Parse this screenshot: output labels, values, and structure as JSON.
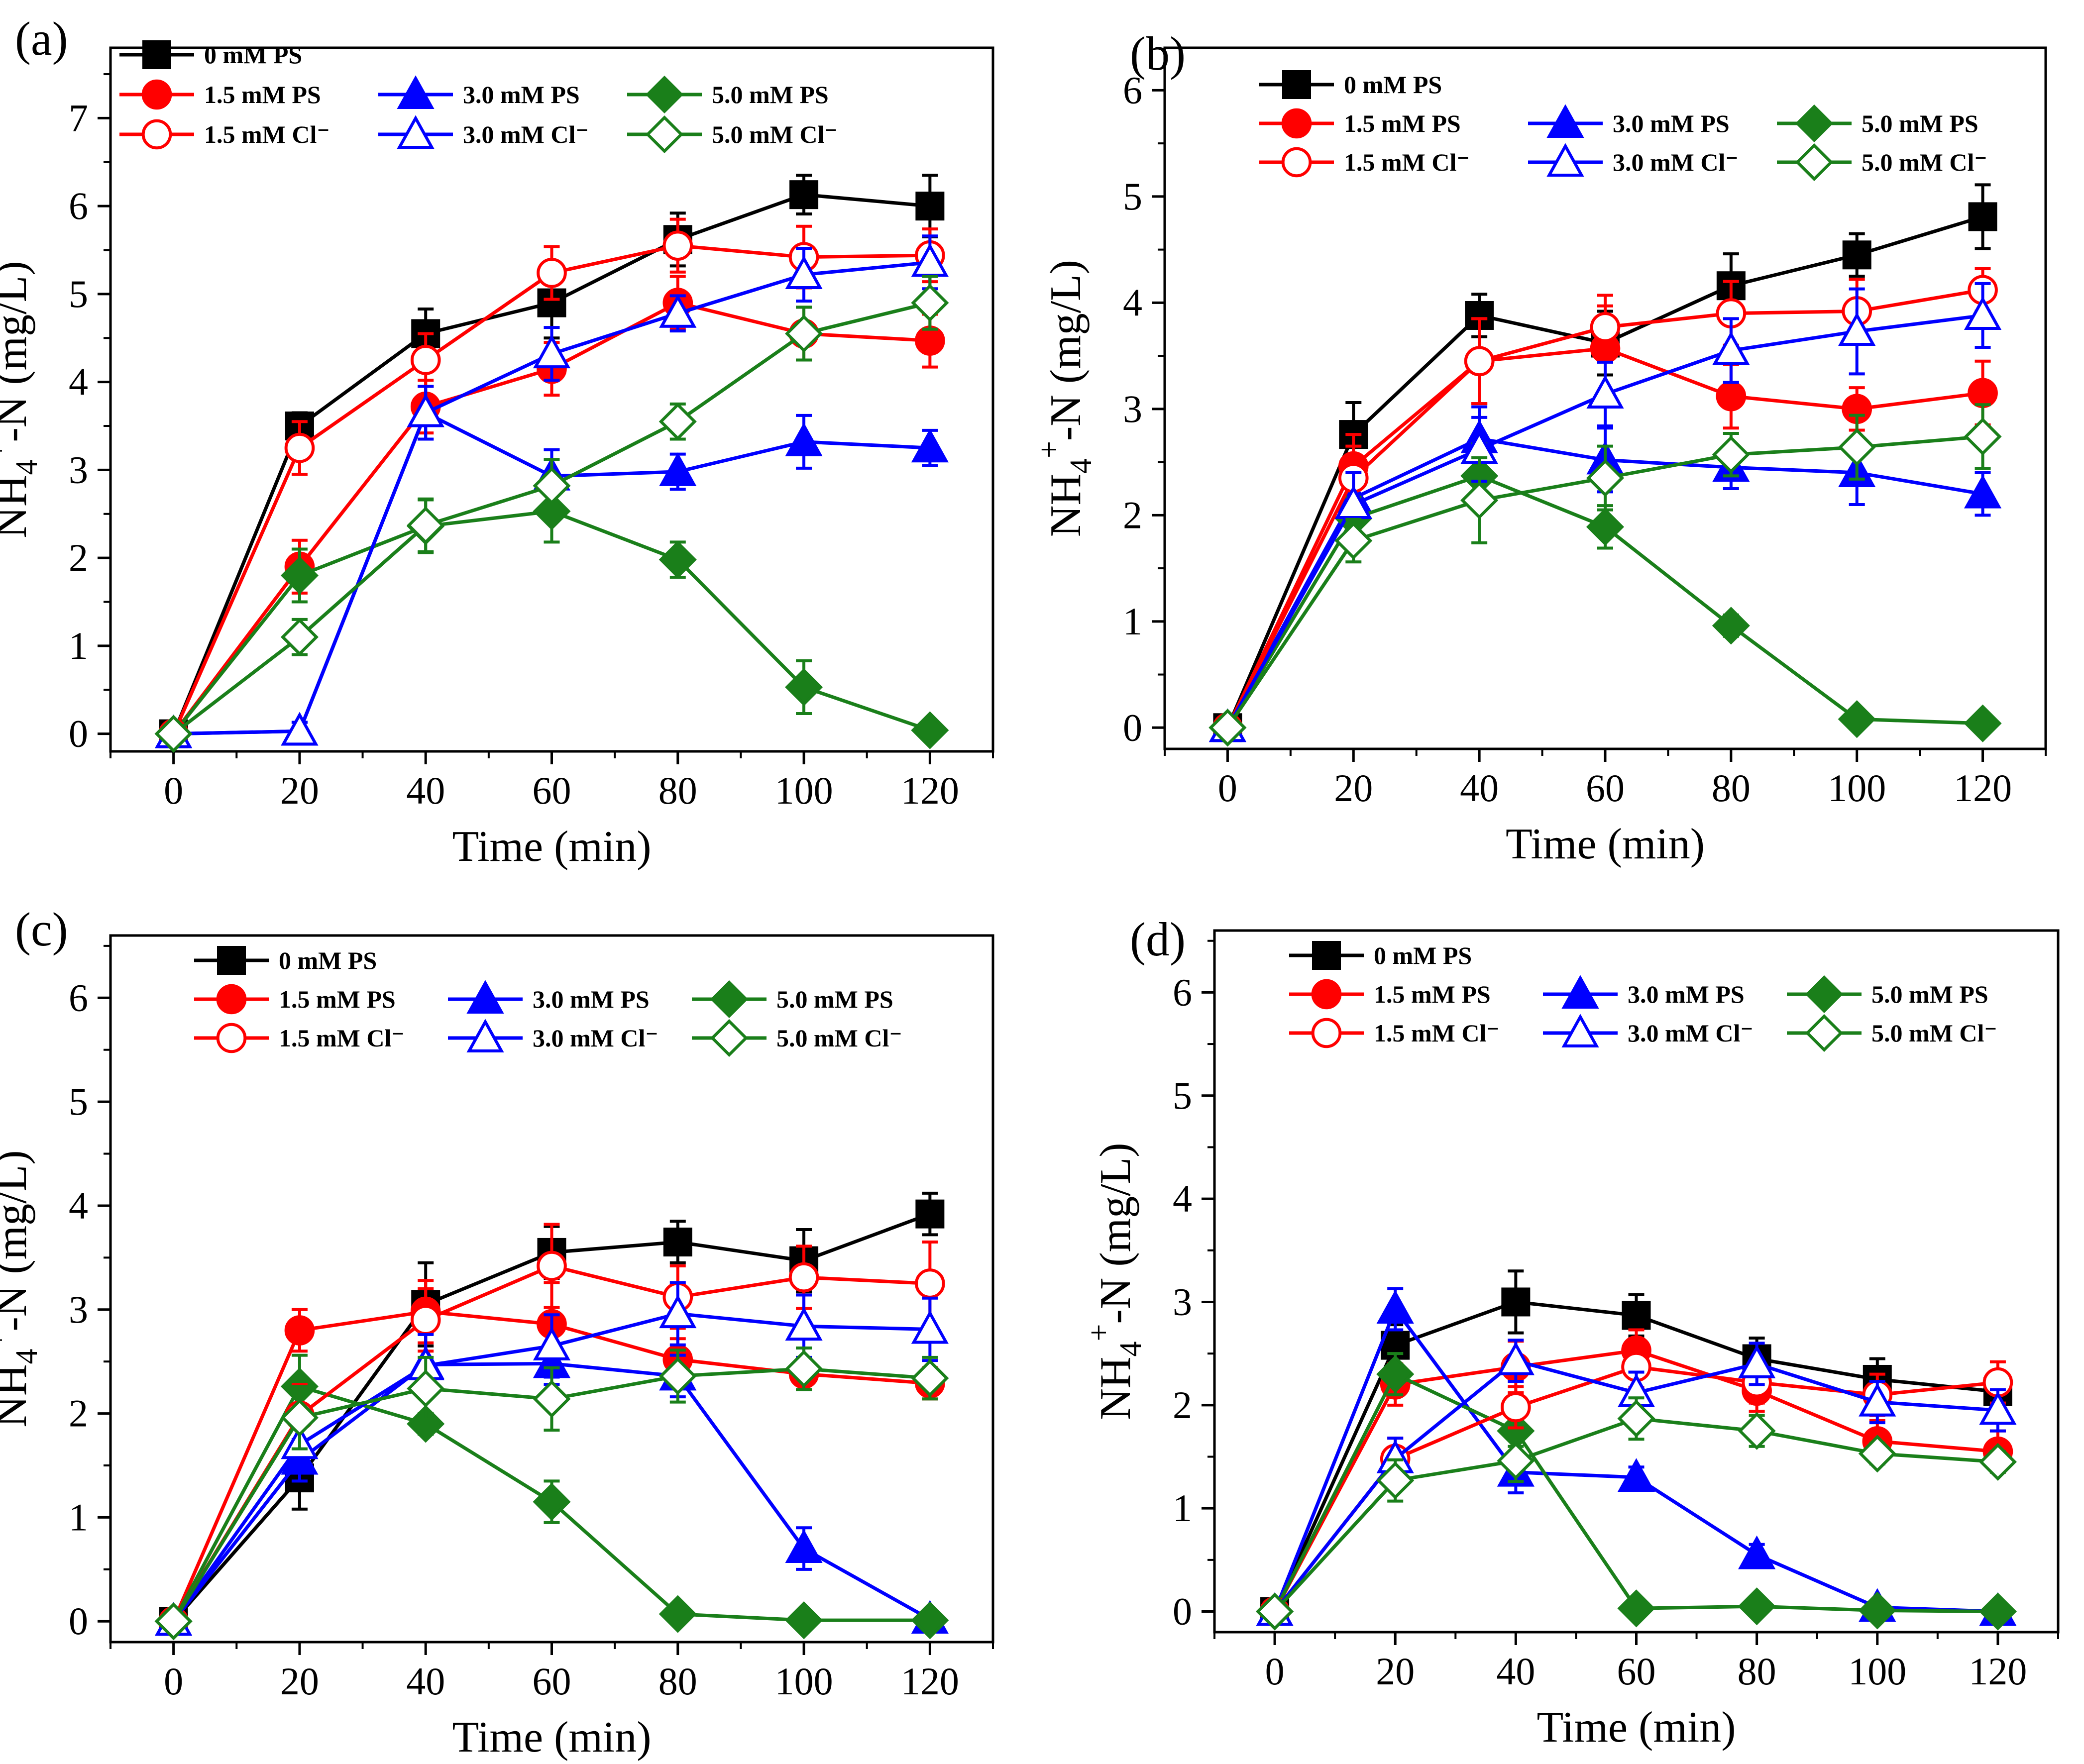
{
  "colors": {
    "black": "#000000",
    "red": "#ff0000",
    "blue": "#0000ff",
    "green": "#1a7f1a"
  },
  "chart_data": [
    {
      "type": "line",
      "label": "(a)",
      "xlabel": "Time (min)",
      "ylabel_base": "NH",
      "ylabel_sub": "4",
      "ylabel_sup": "+",
      "ylabel_rest": "-N (mg/L)",
      "xlim": [
        -10,
        130
      ],
      "ylim": [
        -0.2,
        7.8
      ],
      "xticks": [
        0,
        20,
        40,
        60,
        80,
        100,
        120
      ],
      "yticks": [
        0,
        1,
        2,
        3,
        4,
        5,
        6,
        7
      ],
      "x": [
        0,
        20,
        40,
        60,
        80,
        100,
        120
      ],
      "series": [
        {
          "name": "0 mM PS",
          "color": "black",
          "marker": "square",
          "filled": true,
          "values": [
            0,
            3.5,
            4.55,
            4.9,
            5.62,
            6.13,
            6.0
          ],
          "errors": [
            0,
            0.15,
            0.28,
            0.4,
            0.3,
            0.22,
            0.35
          ]
        },
        {
          "name": "1.5 mM PS",
          "color": "red",
          "marker": "circle",
          "filled": true,
          "values": [
            0,
            1.9,
            3.72,
            4.15,
            4.9,
            4.55,
            4.47
          ],
          "errors": [
            0,
            0.3,
            0.3,
            0.3,
            0.3,
            0.3,
            0.3
          ]
        },
        {
          "name": "3.0 mM PS",
          "color": "blue",
          "marker": "triangle",
          "filled": true,
          "values": [
            0,
            0.03,
            3.65,
            2.93,
            2.98,
            3.32,
            3.25
          ],
          "errors": [
            0,
            0.1,
            0.3,
            0.3,
            0.2,
            0.3,
            0.2
          ]
        },
        {
          "name": "5.0 mM PS",
          "color": "green",
          "marker": "diamond",
          "filled": true,
          "values": [
            0,
            1.8,
            2.36,
            2.53,
            1.98,
            0.53,
            0.04
          ],
          "errors": [
            0,
            0.3,
            0.3,
            0.35,
            0.2,
            0.3,
            0.05
          ]
        },
        {
          "name": "1.5 mM Cl⁻",
          "color": "red",
          "marker": "circle",
          "filled": false,
          "values": [
            0,
            3.25,
            4.25,
            5.24,
            5.55,
            5.42,
            5.44
          ],
          "errors": [
            0,
            0.3,
            0.3,
            0.3,
            0.3,
            0.35,
            0.3
          ]
        },
        {
          "name": "3.0 mM Cl⁻",
          "color": "blue",
          "marker": "triangle",
          "filled": false,
          "values": [
            0,
            0.03,
            3.65,
            4.32,
            4.78,
            5.22,
            5.36
          ],
          "errors": [
            0,
            0.1,
            0.3,
            0.3,
            0.2,
            0.3,
            0.3
          ]
        },
        {
          "name": "5.0 mM Cl⁻",
          "color": "green",
          "marker": "diamond",
          "filled": false,
          "values": [
            0,
            1.1,
            2.37,
            2.82,
            3.55,
            4.55,
            4.9
          ],
          "errors": [
            0,
            0.2,
            0.3,
            0.3,
            0.2,
            0.3,
            0.3
          ]
        }
      ]
    },
    {
      "type": "line",
      "label": "(b)",
      "xlabel": "Time (min)",
      "ylabel_base": "NH",
      "ylabel_sub": "4",
      "ylabel_sup": "+",
      "ylabel_rest": "-N (mg/L)",
      "xlim": [
        -10,
        130
      ],
      "ylim": [
        -0.2,
        6.4
      ],
      "xticks": [
        0,
        20,
        40,
        60,
        80,
        100,
        120
      ],
      "yticks": [
        0,
        1,
        2,
        3,
        4,
        5,
        6
      ],
      "x": [
        0,
        20,
        40,
        60,
        80,
        100,
        120
      ],
      "series": [
        {
          "name": "0 mM PS",
          "color": "black",
          "marker": "square",
          "filled": true,
          "values": [
            0,
            2.76,
            3.88,
            3.62,
            4.16,
            4.45,
            4.81
          ],
          "errors": [
            0,
            0.3,
            0.2,
            0.3,
            0.3,
            0.2,
            0.3
          ]
        },
        {
          "name": "1.5 mM PS",
          "color": "red",
          "marker": "circle",
          "filled": true,
          "values": [
            0,
            2.46,
            3.45,
            3.57,
            3.12,
            3.0,
            3.15
          ],
          "errors": [
            0,
            0.3,
            0.4,
            0.4,
            0.3,
            0.2,
            0.3
          ]
        },
        {
          "name": "3.0 mM PS",
          "color": "blue",
          "marker": "triangle",
          "filled": true,
          "values": [
            0,
            2.16,
            2.72,
            2.52,
            2.45,
            2.4,
            2.2
          ],
          "errors": [
            0,
            0.3,
            0.3,
            0.3,
            0.2,
            0.3,
            0.2
          ]
        },
        {
          "name": "5.0 mM PS",
          "color": "green",
          "marker": "diamond",
          "filled": true,
          "values": [
            0,
            1.97,
            2.37,
            1.89,
            0.96,
            0.08,
            0.04
          ],
          "errors": [
            0,
            0.2,
            0.3,
            0.2,
            0.1,
            0.05,
            0.05
          ]
        },
        {
          "name": "1.5 mM Cl⁻",
          "color": "red",
          "marker": "circle",
          "filled": false,
          "values": [
            0,
            2.35,
            3.45,
            3.77,
            3.9,
            3.92,
            4.12
          ],
          "errors": [
            0,
            0.3,
            0.4,
            0.3,
            0.3,
            0.3,
            0.2
          ]
        },
        {
          "name": "3.0 mM Cl⁻",
          "color": "blue",
          "marker": "triangle",
          "filled": false,
          "values": [
            0,
            2.1,
            2.62,
            3.14,
            3.55,
            3.73,
            3.88
          ],
          "errors": [
            0,
            0.3,
            0.3,
            0.3,
            0.3,
            0.4,
            0.3
          ]
        },
        {
          "name": "5.0 mM Cl⁻",
          "color": "green",
          "marker": "diamond",
          "filled": false,
          "values": [
            0,
            1.76,
            2.14,
            2.35,
            2.57,
            2.64,
            2.74
          ],
          "errors": [
            0,
            0.2,
            0.4,
            0.3,
            0.2,
            0.3,
            0.3
          ]
        }
      ]
    },
    {
      "type": "line",
      "label": "(c)",
      "xlabel": "Time (min)",
      "ylabel_base": "NH",
      "ylabel_sub": "4",
      "ylabel_sup": "+",
      "ylabel_rest": "-N (mg/L)",
      "xlim": [
        -10,
        130
      ],
      "ylim": [
        -0.2,
        6.6
      ],
      "xticks": [
        0,
        20,
        40,
        60,
        80,
        100,
        120
      ],
      "yticks": [
        0,
        1,
        2,
        3,
        4,
        5,
        6
      ],
      "x": [
        0,
        20,
        40,
        60,
        80,
        100,
        120
      ],
      "series": [
        {
          "name": "0 mM PS",
          "color": "black",
          "marker": "square",
          "filled": true,
          "values": [
            0,
            1.38,
            3.05,
            3.55,
            3.65,
            3.47,
            3.92
          ],
          "errors": [
            0,
            0.3,
            0.4,
            0.25,
            0.2,
            0.3,
            0.2
          ]
        },
        {
          "name": "1.5 mM PS",
          "color": "red",
          "marker": "circle",
          "filled": true,
          "values": [
            0,
            2.8,
            2.98,
            2.86,
            2.52,
            2.38,
            2.29
          ],
          "errors": [
            0,
            0.2,
            0.3,
            0.4,
            0.2,
            0.15,
            0.15
          ]
        },
        {
          "name": "3.0 mM PS",
          "color": "blue",
          "marker": "triangle",
          "filled": true,
          "values": [
            0,
            1.55,
            2.47,
            2.48,
            2.36,
            0.7,
            0.02
          ],
          "errors": [
            0,
            0.2,
            0.3,
            0.2,
            0.2,
            0.2,
            0.05
          ]
        },
        {
          "name": "5.0 mM PS",
          "color": "green",
          "marker": "diamond",
          "filled": true,
          "values": [
            0,
            2.26,
            1.9,
            1.15,
            0.07,
            0.01,
            0.01
          ],
          "errors": [
            0,
            0.3,
            0.1,
            0.2,
            0.05,
            0.02,
            0.02
          ]
        },
        {
          "name": "1.5 mM Cl⁻",
          "color": "red",
          "marker": "circle",
          "filled": false,
          "values": [
            0,
            1.98,
            2.9,
            3.42,
            3.12,
            3.31,
            3.25
          ],
          "errors": [
            0,
            0.3,
            0.3,
            0.4,
            0.3,
            0.3,
            0.4
          ]
        },
        {
          "name": "3.0 mM Cl⁻",
          "color": "blue",
          "marker": "triangle",
          "filled": false,
          "values": [
            0,
            1.7,
            2.46,
            2.65,
            2.96,
            2.84,
            2.81
          ],
          "errors": [
            0,
            0.2,
            0.3,
            0.3,
            0.3,
            0.3,
            0.3
          ]
        },
        {
          "name": "5.0 mM Cl⁻",
          "color": "green",
          "marker": "diamond",
          "filled": false,
          "values": [
            0,
            1.96,
            2.24,
            2.14,
            2.36,
            2.43,
            2.34
          ],
          "errors": [
            0,
            0.3,
            0.3,
            0.3,
            0.25,
            0.2,
            0.2
          ]
        }
      ]
    },
    {
      "type": "line",
      "label": "(d)",
      "xlabel": "Time (min)",
      "ylabel_base": "NH",
      "ylabel_sub": "4",
      "ylabel_sup": "+",
      "ylabel_rest": "-N (mg/L)",
      "xlim": [
        -10,
        130
      ],
      "ylim": [
        -0.2,
        6.6
      ],
      "xticks": [
        0,
        20,
        40,
        60,
        80,
        100,
        120
      ],
      "yticks": [
        0,
        1,
        2,
        3,
        4,
        5,
        6
      ],
      "x": [
        0,
        20,
        40,
        60,
        80,
        100,
        120
      ],
      "series": [
        {
          "name": "0 mM PS",
          "color": "black",
          "marker": "square",
          "filled": true,
          "values": [
            0,
            2.58,
            3.0,
            2.87,
            2.45,
            2.25,
            2.13
          ],
          "errors": [
            0,
            0.2,
            0.3,
            0.2,
            0.2,
            0.2,
            0.2
          ]
        },
        {
          "name": "1.5 mM PS",
          "color": "red",
          "marker": "circle",
          "filled": true,
          "values": [
            0,
            2.2,
            2.37,
            2.53,
            2.14,
            1.65,
            1.55
          ],
          "errors": [
            0,
            0.2,
            0.25,
            0.2,
            0.2,
            0.2,
            0.2
          ]
        },
        {
          "name": "3.0 mM PS",
          "color": "blue",
          "marker": "triangle",
          "filled": true,
          "values": [
            0,
            2.93,
            1.35,
            1.3,
            0.55,
            0.04,
            0.0
          ],
          "errors": [
            0,
            0.2,
            0.2,
            0.1,
            0.1,
            0.05,
            0.02
          ]
        },
        {
          "name": "5.0 mM PS",
          "color": "green",
          "marker": "diamond",
          "filled": true,
          "values": [
            0,
            2.3,
            1.75,
            0.03,
            0.05,
            0.01,
            0.0
          ],
          "errors": [
            0,
            0.2,
            0.15,
            0.03,
            0.03,
            0.02,
            0.02
          ]
        },
        {
          "name": "1.5 mM Cl⁻",
          "color": "red",
          "marker": "circle",
          "filled": false,
          "values": [
            0,
            1.48,
            1.98,
            2.37,
            2.22,
            2.1,
            2.22
          ],
          "errors": [
            0,
            0.2,
            0.2,
            0.2,
            0.2,
            0.2,
            0.2
          ]
        },
        {
          "name": "3.0 mM Cl⁻",
          "color": "blue",
          "marker": "triangle",
          "filled": false,
          "values": [
            0,
            1.48,
            2.43,
            2.12,
            2.4,
            2.03,
            1.95
          ],
          "errors": [
            0,
            0.2,
            0.2,
            0.2,
            0.2,
            0.2,
            0.2
          ]
        },
        {
          "name": "5.0 mM Cl⁻",
          "color": "green",
          "marker": "diamond",
          "filled": false,
          "values": [
            0,
            1.27,
            1.46,
            1.87,
            1.75,
            1.53,
            1.45
          ],
          "errors": [
            0,
            0.2,
            0.2,
            0.2,
            0.15,
            0.1,
            0.1
          ]
        }
      ]
    }
  ]
}
